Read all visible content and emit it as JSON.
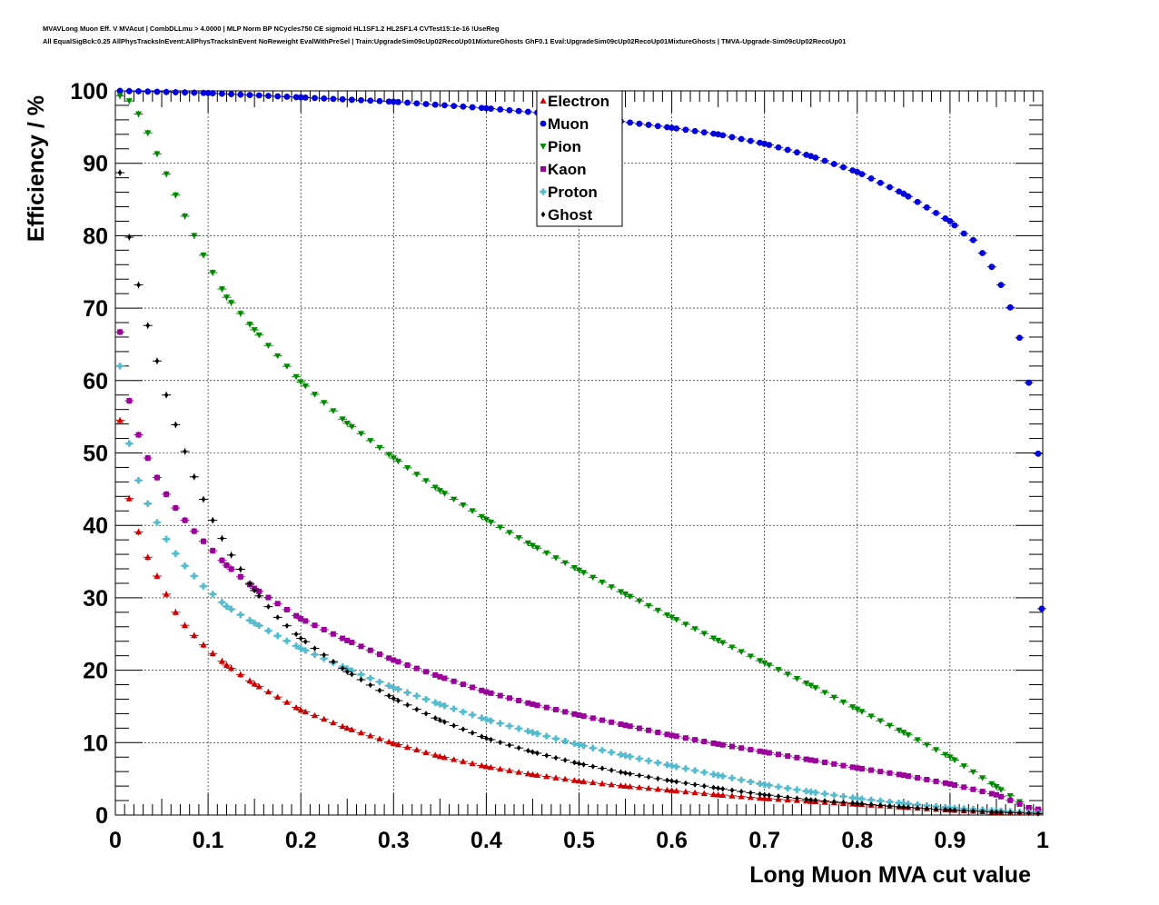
{
  "header": {
    "line1": "MVAVLong Muon Eff. V MVAcut | CombDLLmu > 4.0000 | MLP Norm BP NCycles750 CE sigmoid HL1SF1.2 HL2SF1.4 CVTest15:1e-16 !UseReg",
    "line2": "All EqualSigBck:0.25 AllPhysTracksInEvent:AllPhysTracksInEvent NoReweight EvalWithPreSel | Train:UpgradeSim09cUp02RecoUp01MixtureGhosts GhF0.1 Eval:UpgradeSim09cUp02RecoUp01MixtureGhosts | TMVA-Upgrade-Sim09cUp02RecoUp01"
  },
  "chart_data": {
    "type": "scatter",
    "xlabel": "Long Muon MVA cut value",
    "ylabel": "Efficiency / %",
    "xlim": [
      0,
      1
    ],
    "ylim": [
      0,
      100
    ],
    "grid": true,
    "legend_position": "top-center",
    "x_ticks": [
      "0",
      "0.1",
      "0.2",
      "0.3",
      "0.4",
      "0.5",
      "0.6",
      "0.7",
      "0.8",
      "0.9",
      "1"
    ],
    "y_ticks": [
      "0",
      "10",
      "20",
      "30",
      "40",
      "50",
      "60",
      "70",
      "80",
      "90",
      "100"
    ],
    "x_step": 0.01,
    "x_first": 0.005,
    "series": [
      {
        "name": "Electron",
        "color": "#cc0000",
        "marker": "triangle-up",
        "anchors": [
          [
            0.005,
            54.5
          ],
          [
            0.015,
            43.7
          ],
          [
            0.025,
            39.1
          ],
          [
            0.035,
            35.6
          ],
          [
            0.045,
            33.0
          ],
          [
            0.055,
            30.5
          ],
          [
            0.065,
            28.0
          ],
          [
            0.075,
            26.2
          ],
          [
            0.085,
            24.8
          ],
          [
            0.095,
            23.5
          ],
          [
            0.105,
            22.3
          ],
          [
            0.12,
            20.7
          ],
          [
            0.15,
            18.1
          ],
          [
            0.2,
            14.5
          ],
          [
            0.25,
            12.0
          ],
          [
            0.3,
            9.9
          ],
          [
            0.35,
            8.1
          ],
          [
            0.4,
            6.7
          ],
          [
            0.45,
            5.6
          ],
          [
            0.5,
            4.7
          ],
          [
            0.55,
            4.0
          ],
          [
            0.6,
            3.4
          ],
          [
            0.65,
            2.8
          ],
          [
            0.7,
            2.3
          ],
          [
            0.75,
            1.9
          ],
          [
            0.8,
            1.5
          ],
          [
            0.85,
            1.1
          ],
          [
            0.9,
            0.7
          ],
          [
            0.95,
            0.4
          ],
          [
            0.995,
            0.3
          ]
        ]
      },
      {
        "name": "Muon",
        "color": "#0000dd",
        "marker": "circle",
        "anchors": [
          [
            0.005,
            100.0
          ],
          [
            0.1,
            99.7
          ],
          [
            0.2,
            99.1
          ],
          [
            0.3,
            98.5
          ],
          [
            0.4,
            97.6
          ],
          [
            0.5,
            96.5
          ],
          [
            0.6,
            94.9
          ],
          [
            0.65,
            94.0
          ],
          [
            0.7,
            92.7
          ],
          [
            0.75,
            91.0
          ],
          [
            0.8,
            88.8
          ],
          [
            0.85,
            85.8
          ],
          [
            0.9,
            82.0
          ],
          [
            0.915,
            80.3
          ],
          [
            0.925,
            79.4
          ],
          [
            0.935,
            77.6
          ],
          [
            0.945,
            75.7
          ],
          [
            0.955,
            73.2
          ],
          [
            0.965,
            70.1
          ],
          [
            0.975,
            65.9
          ],
          [
            0.985,
            59.7
          ],
          [
            0.995,
            49.9
          ],
          [
            0.999,
            28.5
          ]
        ]
      },
      {
        "name": "Pion",
        "color": "#008800",
        "marker": "triangle-down",
        "anchors": [
          [
            0.005,
            99.3
          ],
          [
            0.015,
            98.6
          ],
          [
            0.025,
            96.8
          ],
          [
            0.035,
            94.2
          ],
          [
            0.045,
            91.3
          ],
          [
            0.055,
            88.5
          ],
          [
            0.065,
            85.6
          ],
          [
            0.075,
            82.7
          ],
          [
            0.085,
            80.0
          ],
          [
            0.095,
            77.3
          ],
          [
            0.105,
            74.9
          ],
          [
            0.12,
            71.5
          ],
          [
            0.15,
            67.0
          ],
          [
            0.2,
            59.8
          ],
          [
            0.25,
            54.1
          ],
          [
            0.3,
            49.3
          ],
          [
            0.35,
            44.8
          ],
          [
            0.4,
            40.8
          ],
          [
            0.45,
            37.2
          ],
          [
            0.5,
            33.8
          ],
          [
            0.55,
            30.5
          ],
          [
            0.6,
            27.3
          ],
          [
            0.65,
            24.1
          ],
          [
            0.7,
            21.0
          ],
          [
            0.75,
            17.9
          ],
          [
            0.8,
            14.6
          ],
          [
            0.85,
            11.4
          ],
          [
            0.9,
            8.0
          ],
          [
            0.95,
            3.9
          ],
          [
            0.985,
            1.0
          ],
          [
            0.995,
            0.4
          ]
        ]
      },
      {
        "name": "Kaon",
        "color": "#990099",
        "marker": "square",
        "anchors": [
          [
            0.005,
            66.7
          ],
          [
            0.015,
            57.2
          ],
          [
            0.025,
            52.5
          ],
          [
            0.035,
            49.3
          ],
          [
            0.045,
            46.6
          ],
          [
            0.055,
            44.3
          ],
          [
            0.065,
            42.4
          ],
          [
            0.075,
            40.7
          ],
          [
            0.085,
            39.2
          ],
          [
            0.095,
            37.8
          ],
          [
            0.105,
            36.5
          ],
          [
            0.12,
            34.5
          ],
          [
            0.15,
            31.3
          ],
          [
            0.2,
            27.1
          ],
          [
            0.25,
            24.1
          ],
          [
            0.3,
            21.4
          ],
          [
            0.35,
            19.1
          ],
          [
            0.4,
            17.0
          ],
          [
            0.45,
            15.3
          ],
          [
            0.5,
            13.8
          ],
          [
            0.55,
            12.4
          ],
          [
            0.6,
            11.0
          ],
          [
            0.65,
            9.8
          ],
          [
            0.7,
            8.7
          ],
          [
            0.75,
            7.6
          ],
          [
            0.8,
            6.5
          ],
          [
            0.85,
            5.5
          ],
          [
            0.9,
            4.3
          ],
          [
            0.95,
            2.8
          ],
          [
            0.985,
            1.0
          ],
          [
            0.995,
            0.8
          ]
        ]
      },
      {
        "name": "Proton",
        "color": "#55bbcc",
        "marker": "cross",
        "anchors": [
          [
            0.005,
            62.0
          ],
          [
            0.015,
            51.3
          ],
          [
            0.025,
            46.2
          ],
          [
            0.035,
            43.0
          ],
          [
            0.045,
            40.4
          ],
          [
            0.055,
            38.1
          ],
          [
            0.065,
            36.1
          ],
          [
            0.075,
            34.4
          ],
          [
            0.085,
            33.0
          ],
          [
            0.095,
            31.6
          ],
          [
            0.105,
            30.5
          ],
          [
            0.12,
            28.8
          ],
          [
            0.15,
            26.5
          ],
          [
            0.2,
            23.0
          ],
          [
            0.25,
            20.2
          ],
          [
            0.3,
            17.6
          ],
          [
            0.35,
            15.3
          ],
          [
            0.4,
            13.2
          ],
          [
            0.45,
            11.4
          ],
          [
            0.5,
            9.7
          ],
          [
            0.55,
            8.2
          ],
          [
            0.6,
            6.8
          ],
          [
            0.65,
            5.5
          ],
          [
            0.7,
            4.2
          ],
          [
            0.75,
            3.2
          ],
          [
            0.8,
            2.3
          ],
          [
            0.85,
            1.6
          ],
          [
            0.9,
            1.0
          ],
          [
            0.95,
            0.6
          ],
          [
            0.995,
            0.3
          ]
        ]
      },
      {
        "name": "Ghost",
        "color": "#000000",
        "marker": "diamond",
        "anchors": [
          [
            0.005,
            88.7
          ],
          [
            0.015,
            79.8
          ],
          [
            0.025,
            73.2
          ],
          [
            0.035,
            67.6
          ],
          [
            0.045,
            62.7
          ],
          [
            0.055,
            58.0
          ],
          [
            0.065,
            53.9
          ],
          [
            0.075,
            50.2
          ],
          [
            0.085,
            46.7
          ],
          [
            0.095,
            43.6
          ],
          [
            0.105,
            40.7
          ],
          [
            0.115,
            38.2
          ],
          [
            0.125,
            35.9
          ],
          [
            0.15,
            31.0
          ],
          [
            0.175,
            27.3
          ],
          [
            0.2,
            24.4
          ],
          [
            0.25,
            19.8
          ],
          [
            0.3,
            16.1
          ],
          [
            0.35,
            13.1
          ],
          [
            0.4,
            10.6
          ],
          [
            0.45,
            8.7
          ],
          [
            0.5,
            7.1
          ],
          [
            0.55,
            5.8
          ],
          [
            0.6,
            4.7
          ],
          [
            0.65,
            3.7
          ],
          [
            0.7,
            2.8
          ],
          [
            0.75,
            2.1
          ],
          [
            0.8,
            1.6
          ],
          [
            0.85,
            1.1
          ],
          [
            0.9,
            0.7
          ],
          [
            0.95,
            0.4
          ],
          [
            0.995,
            0.2
          ]
        ]
      }
    ]
  }
}
